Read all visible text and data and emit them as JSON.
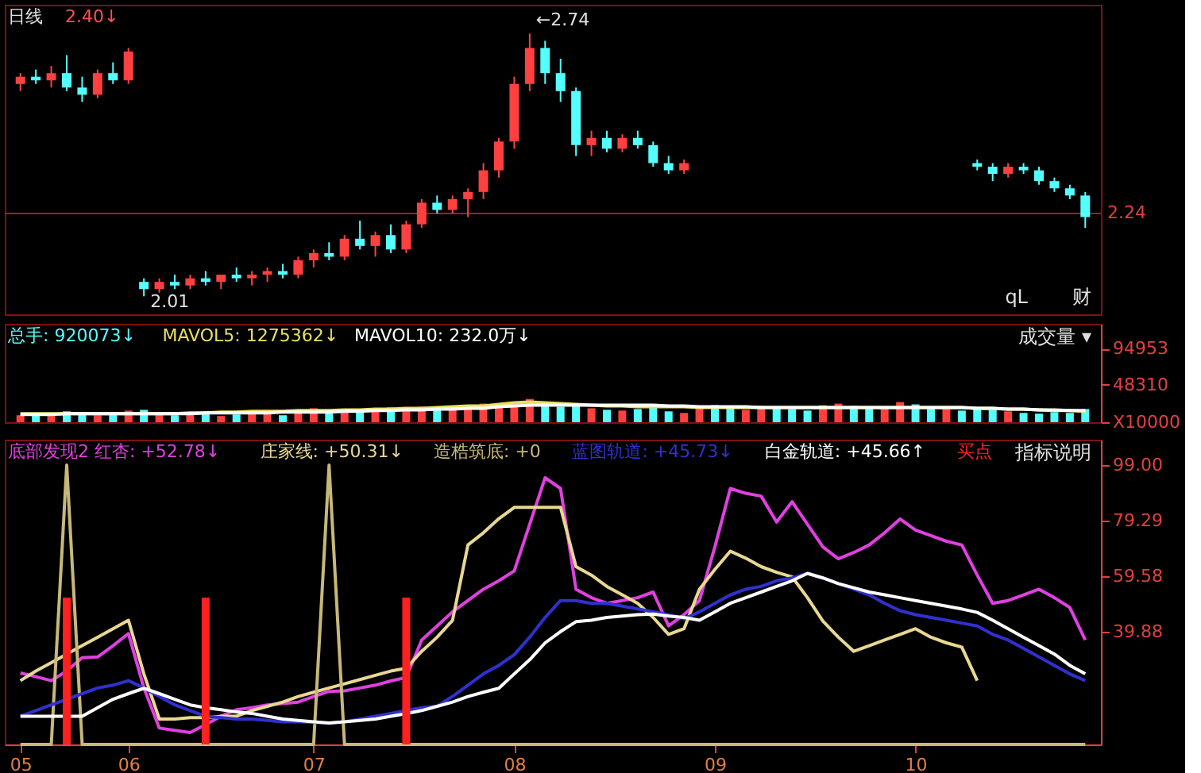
{
  "chart_data": [
    {
      "type": "candlestick",
      "title": "日线",
      "subtitle": "2.40↓",
      "ylim": [
        1.96,
        2.82
      ],
      "tick_labels": false,
      "ref_lines": [
        {
          "axis": "y",
          "value": 2.24,
          "label": "2.24",
          "color": "#a02020"
        }
      ],
      "categories": [
        null,
        null,
        null,
        null,
        null,
        null,
        null,
        null,
        null,
        null,
        null,
        null,
        null,
        null,
        null,
        null,
        null,
        null,
        null,
        null,
        null,
        null,
        null,
        null,
        null,
        null,
        null,
        null,
        null,
        null,
        null,
        null,
        null,
        null,
        null,
        null,
        null,
        null,
        null,
        null,
        null,
        null,
        null,
        null,
        null,
        null,
        null,
        null,
        null,
        null,
        null,
        null,
        null,
        null,
        null,
        null,
        null,
        null,
        null,
        null,
        null,
        null,
        null,
        null,
        null,
        null,
        null,
        null,
        null,
        null
      ],
      "ohlc": [
        [
          2.6,
          2.63,
          2.58,
          2.62
        ],
        [
          2.62,
          2.64,
          2.6,
          2.61
        ],
        [
          2.61,
          2.65,
          2.59,
          2.63
        ],
        [
          2.63,
          2.68,
          2.58,
          2.59
        ],
        [
          2.59,
          2.62,
          2.55,
          2.57
        ],
        [
          2.57,
          2.64,
          2.56,
          2.63
        ],
        [
          2.63,
          2.66,
          2.6,
          2.61
        ],
        [
          2.61,
          2.7,
          2.6,
          2.69
        ],
        [
          2.05,
          2.06,
          2.01,
          2.03
        ],
        [
          2.03,
          2.06,
          2.02,
          2.05
        ],
        [
          2.05,
          2.07,
          2.03,
          2.04
        ],
        [
          2.04,
          2.07,
          2.03,
          2.06
        ],
        [
          2.06,
          2.08,
          2.04,
          2.05
        ],
        [
          2.05,
          2.07,
          2.03,
          2.07
        ],
        [
          2.07,
          2.09,
          2.05,
          2.06
        ],
        [
          2.06,
          2.08,
          2.04,
          2.07
        ],
        [
          2.07,
          2.09,
          2.05,
          2.08
        ],
        [
          2.08,
          2.1,
          2.06,
          2.07
        ],
        [
          2.07,
          2.12,
          2.06,
          2.11
        ],
        [
          2.11,
          2.14,
          2.09,
          2.13
        ],
        [
          2.13,
          2.16,
          2.11,
          2.12
        ],
        [
          2.12,
          2.18,
          2.11,
          2.17
        ],
        [
          2.17,
          2.22,
          2.14,
          2.15
        ],
        [
          2.15,
          2.19,
          2.12,
          2.18
        ],
        [
          2.18,
          2.21,
          2.13,
          2.14
        ],
        [
          2.14,
          2.22,
          2.13,
          2.21
        ],
        [
          2.21,
          2.28,
          2.2,
          2.27
        ],
        [
          2.27,
          2.29,
          2.24,
          2.25
        ],
        [
          2.25,
          2.29,
          2.24,
          2.28
        ],
        [
          2.28,
          2.31,
          2.23,
          2.3
        ],
        [
          2.3,
          2.38,
          2.28,
          2.36
        ],
        [
          2.36,
          2.45,
          2.34,
          2.44
        ],
        [
          2.44,
          2.62,
          2.42,
          2.6
        ],
        [
          2.6,
          2.74,
          2.58,
          2.7
        ],
        [
          2.7,
          2.72,
          2.6,
          2.63
        ],
        [
          2.63,
          2.67,
          2.55,
          2.58
        ],
        [
          2.58,
          2.59,
          2.4,
          2.43
        ],
        [
          2.43,
          2.47,
          2.4,
          2.45
        ],
        [
          2.45,
          2.47,
          2.41,
          2.42
        ],
        [
          2.42,
          2.46,
          2.41,
          2.45
        ],
        [
          2.45,
          2.47,
          2.42,
          2.43
        ],
        [
          2.43,
          2.44,
          2.37,
          2.38
        ],
        [
          2.38,
          2.4,
          2.35,
          2.36
        ],
        [
          2.36,
          2.39,
          2.35,
          2.38
        ],
        null,
        null,
        null,
        null,
        null,
        null,
        null,
        null,
        null,
        null,
        null,
        null,
        null,
        null,
        null,
        null,
        null,
        null,
        [
          2.38,
          2.39,
          2.36,
          2.37
        ],
        [
          2.37,
          2.38,
          2.33,
          2.35
        ],
        [
          2.35,
          2.38,
          2.34,
          2.37
        ],
        [
          2.37,
          2.38,
          2.35,
          2.36
        ],
        [
          2.36,
          2.37,
          2.32,
          2.33
        ],
        [
          2.33,
          2.34,
          2.3,
          2.31
        ],
        [
          2.31,
          2.32,
          2.28,
          2.29
        ],
        [
          2.29,
          2.3,
          2.2,
          2.23
        ]
      ],
      "colors": [
        "#ff4040",
        "#54ffff",
        "#ff4040",
        "#54ffff",
        "#54ffff",
        "#ff4040",
        "#54ffff",
        "#ff4040",
        "#54ffff",
        "#ff4040",
        "#54ffff",
        "#ff4040",
        "#54ffff",
        "#ff4040",
        "#54ffff",
        "#ff4040",
        "#ff4040",
        "#54ffff",
        "#ff4040",
        "#ff4040",
        "#54ffff",
        "#ff4040",
        "#54ffff",
        "#ff4040",
        "#54ffff",
        "#ff4040",
        "#ff4040",
        "#54ffff",
        "#ff4040",
        "#ff4040",
        "#ff4040",
        "#ff4040",
        "#ff4040",
        "#ff4040",
        "#54ffff",
        "#54ffff",
        "#54ffff",
        "#ff4040",
        "#54ffff",
        "#ff4040",
        "#54ffff",
        "#54ffff",
        "#54ffff",
        "#ff4040",
        null,
        null,
        null,
        null,
        null,
        null,
        null,
        null,
        null,
        null,
        null,
        null,
        null,
        null,
        null,
        null,
        null,
        null,
        "#54ffff",
        "#54ffff",
        "#ff4040",
        "#54ffff",
        "#54ffff",
        "#54ffff",
        "#54ffff",
        "#54ffff"
      ],
      "annotations": [
        "←2.74",
        "2.01",
        "qL",
        "财"
      ]
    },
    {
      "type": "bar",
      "ylim": [
        0,
        127000
      ],
      "yticks": [
        94953,
        48310,
        {
          "value": 0,
          "label": "X10000"
        }
      ],
      "tick_labels": "y",
      "legend": "top left",
      "categories": [
        null,
        null,
        null,
        null,
        null,
        null,
        null,
        null,
        null,
        null,
        null,
        null,
        null,
        null,
        null,
        null,
        null,
        null,
        null,
        null,
        null,
        null,
        null,
        null,
        null,
        null,
        null,
        null,
        null,
        null,
        null,
        null,
        null,
        null,
        null,
        null,
        null,
        null,
        null,
        null,
        null,
        null,
        null,
        null,
        null,
        null,
        null,
        null,
        null,
        null,
        null,
        null,
        null,
        null,
        null,
        null,
        null,
        null,
        null,
        null,
        null,
        null,
        null,
        null,
        null,
        null,
        null,
        null,
        null,
        null
      ],
      "annotations": [
        "成交量 ▾"
      ],
      "series": [
        {
          "name": "总手: 920073↓",
          "type": "bar",
          "color": "#54ffff",
          "values": [
            9000,
            12000,
            10000,
            14000,
            11000,
            9000,
            13000,
            15000,
            16000,
            10000,
            9000,
            11000,
            12000,
            8000,
            10000,
            13000,
            14000,
            9000,
            15000,
            18000,
            12000,
            16000,
            14000,
            17000,
            19000,
            15000,
            20000,
            16000,
            18000,
            21000,
            24000,
            22000,
            25000,
            30000,
            26000,
            20000,
            23000,
            18000,
            16000,
            15000,
            17000,
            19000,
            14000,
            12000,
            20000,
            22000,
            18000,
            16000,
            21000,
            19000,
            17000,
            15000,
            22000,
            24000,
            21000,
            18000,
            20000,
            26000,
            23000,
            19000,
            17000,
            15000,
            18000,
            16000,
            14000,
            12000,
            11000,
            13000,
            12000,
            17000
          ],
          "colors": [
            "#ff4040",
            "#54ffff",
            "#ff4040",
            "#54ffff",
            "#54ffff",
            "#ff4040",
            "#54ffff",
            "#ff4040",
            "#54ffff",
            "#ff4040",
            "#54ffff",
            "#ff4040",
            "#54ffff",
            "#ff4040",
            "#54ffff",
            "#ff4040",
            "#ff4040",
            "#54ffff",
            "#ff4040",
            "#ff4040",
            "#54ffff",
            "#ff4040",
            "#54ffff",
            "#ff4040",
            "#54ffff",
            "#ff4040",
            "#ff4040",
            "#54ffff",
            "#ff4040",
            "#ff4040",
            "#ff4040",
            "#ff4040",
            "#ff4040",
            "#ff4040",
            "#54ffff",
            "#54ffff",
            "#54ffff",
            "#ff4040",
            "#54ffff",
            "#ff4040",
            "#54ffff",
            "#54ffff",
            "#54ffff",
            "#ff4040",
            "#ff4040",
            "#54ffff",
            "#54ffff",
            "#ff4040",
            "#ff4040",
            "#54ffff",
            "#54ffff",
            "#54ffff",
            "#ff4040",
            "#ff4040",
            "#54ffff",
            "#54ffff",
            "#ff4040",
            "#ff4040",
            "#54ffff",
            "#54ffff",
            "#ff4040",
            "#54ffff",
            "#54ffff",
            "#54ffff",
            "#ff4040",
            "#54ffff",
            "#54ffff",
            "#54ffff",
            "#54ffff",
            "#54ffff"
          ]
        },
        {
          "name": "MAVOL5: 1275362↓",
          "type": "line",
          "color": "#e8e060",
          "values": [
            11000,
            11000,
            11000,
            11000,
            11000,
            11000,
            11000,
            11000,
            11000,
            11000,
            11000,
            12000,
            12000,
            13000,
            13000,
            14000,
            14000,
            14000,
            15000,
            15000,
            15000,
            16000,
            16000,
            17000,
            17000,
            18000,
            18000,
            19000,
            20000,
            21000,
            21000,
            23000,
            25000,
            26000,
            25000,
            24000,
            23000,
            22000,
            21000,
            21000,
            20000,
            20000,
            20000,
            20000,
            19000,
            19000,
            19000,
            19000,
            19000,
            19000,
            19000,
            19000,
            19000,
            19000,
            19000,
            19000,
            19000,
            19000,
            19000,
            19000,
            19000,
            19000,
            18000,
            18000,
            17000,
            17000,
            16000,
            15000,
            15000,
            14000
          ]
        },
        {
          "name": "MAVOL10: 232.0万↓",
          "type": "line",
          "color": "#ffffff",
          "values": [
            10000,
            10000,
            10000,
            11000,
            11000,
            11000,
            11000,
            11000,
            11000,
            11000,
            11000,
            11000,
            12000,
            12000,
            12000,
            12000,
            12000,
            13000,
            13000,
            13000,
            13000,
            14000,
            14000,
            15000,
            15000,
            16000,
            16000,
            17000,
            17000,
            18000,
            18000,
            20000,
            21000,
            22000,
            22000,
            22000,
            22000,
            22000,
            22000,
            22000,
            22000,
            22000,
            21000,
            21000,
            20000,
            20000,
            20000,
            20000,
            19000,
            19000,
            19000,
            19000,
            19000,
            19000,
            19000,
            19000,
            19000,
            19000,
            19000,
            19000,
            19000,
            19000,
            18000,
            18000,
            17000,
            17000,
            16000,
            16000,
            15000,
            15000
          ]
        }
      ]
    },
    {
      "type": "line",
      "ylim": [
        0,
        108
      ],
      "yticks": [
        {
          "value": 99,
          "label": "99.00"
        },
        {
          "value": 79.29,
          "label": "79.29"
        },
        {
          "value": 59.58,
          "label": "59.58"
        },
        {
          "value": 39.88,
          "label": "39.88"
        }
      ],
      "categories": [
        "05",
        null,
        null,
        null,
        null,
        null,
        null,
        "06",
        null,
        null,
        null,
        null,
        null,
        null,
        null,
        null,
        null,
        null,
        null,
        "07",
        null,
        null,
        null,
        null,
        null,
        null,
        null,
        null,
        null,
        null,
        null,
        null,
        "08",
        null,
        null,
        null,
        null,
        null,
        null,
        null,
        null,
        null,
        null,
        null,
        null,
        "09",
        null,
        null,
        null,
        null,
        null,
        null,
        null,
        null,
        null,
        null,
        null,
        null,
        "10",
        null,
        null,
        null,
        null,
        null,
        null,
        null,
        null,
        null,
        null,
        null
      ],
      "legend": "top left",
      "annotations": [
        "指标说明"
      ],
      "series": [
        {
          "name": "底部发现2 红杏: +52.78↓",
          "type": "line",
          "color": "#e040e0",
          "values": [
            25.3,
            24,
            22.6,
            26,
            30.7,
            31,
            35,
            39.3,
            20,
            5.8,
            5,
            4.2,
            7,
            10,
            12.3,
            13,
            14,
            14.5,
            15,
            17,
            18.8,
            19,
            20,
            21,
            22.5,
            23.7,
            37,
            42,
            47,
            51,
            55,
            58,
            61.5,
            78,
            94.5,
            90.7,
            55,
            52,
            50,
            51,
            52,
            54,
            42,
            46,
            51,
            70,
            90.7,
            89,
            88,
            78.8,
            86,
            78,
            70,
            65.8,
            68,
            70.7,
            75,
            79.9,
            76,
            74,
            72,
            70.7,
            60,
            50,
            51,
            53,
            55,
            52,
            48.5,
            37
          ]
        },
        {
          "name": "庄家线: +50.31↓",
          "type": "line",
          "color": "#e8d890",
          "values": [
            22.6,
            26,
            29,
            32,
            35,
            38,
            41,
            44,
            25,
            9,
            9,
            9.5,
            9.5,
            10,
            10,
            12,
            13.5,
            15,
            17,
            18.5,
            20,
            21.5,
            23,
            24.5,
            26,
            27,
            33,
            38,
            44,
            70.7,
            75,
            80,
            84,
            84,
            84,
            84,
            63,
            60,
            56,
            53,
            50,
            45,
            39,
            41,
            55,
            62,
            68.5,
            66,
            63,
            61,
            59.4,
            52,
            43.7,
            38,
            33,
            35,
            37,
            39,
            41,
            38,
            36,
            34.5,
            22.6,
            null,
            null,
            null,
            null,
            null,
            null,
            null
          ]
        },
        {
          "name": "造梏筑底: +0",
          "type": "line",
          "color": "#c8b878",
          "values": [
            0,
            0,
            0,
            99,
            0,
            0,
            0,
            0,
            0,
            0,
            0,
            0,
            0,
            0,
            0,
            0,
            0,
            0,
            0,
            0,
            99,
            0,
            0,
            0,
            0,
            0,
            0,
            0,
            0,
            0,
            0,
            0,
            0,
            0,
            0,
            0,
            0,
            0,
            0,
            0,
            0,
            0,
            0,
            0,
            0,
            0,
            0,
            0,
            0,
            0,
            0,
            0,
            0,
            0,
            0,
            0,
            0,
            0,
            0,
            0,
            0,
            0,
            0,
            0,
            0,
            0,
            0,
            0,
            0,
            0
          ]
        },
        {
          "name": "蓝图轨道: +45.73↓",
          "type": "line",
          "color": "#3030d0",
          "values": [
            10,
            12,
            14,
            16,
            18,
            20,
            21,
            22.6,
            20,
            17,
            14,
            12,
            10,
            9.5,
            9,
            9,
            8.5,
            8,
            8,
            7.8,
            7.6,
            8,
            9,
            10,
            11,
            12,
            13,
            13.6,
            17,
            21,
            25,
            28,
            31.8,
            38,
            45,
            51,
            51,
            50,
            50,
            49,
            48,
            47,
            46,
            44.5,
            47,
            50,
            53,
            55,
            56,
            58,
            59,
            60.6,
            59,
            57,
            55,
            53,
            50,
            47.4,
            46,
            45,
            44,
            43,
            42,
            39,
            37,
            34,
            31,
            28,
            25,
            22.6
          ]
        },
        {
          "name": "白金轨道: +45.66↑",
          "type": "line",
          "color": "#ffffff",
          "values": [
            10,
            10,
            10,
            10,
            10,
            13,
            16,
            18,
            19.9,
            18,
            16,
            14,
            13,
            12.3,
            11.5,
            11,
            10,
            9,
            8.5,
            8,
            7.6,
            8,
            8.5,
            9,
            10,
            10.9,
            12,
            13.5,
            15,
            17,
            18.5,
            19.9,
            25,
            30,
            36,
            40,
            43.5,
            44,
            45,
            45.5,
            46,
            46.2,
            45.5,
            45,
            44,
            47,
            50,
            52,
            54,
            56,
            58,
            60.6,
            59,
            57,
            55.5,
            54,
            53,
            52,
            51,
            50,
            49,
            48,
            46.8,
            44,
            41,
            38,
            35,
            32,
            28,
            25
          ]
        },
        {
          "name": "买点",
          "type": "bar",
          "color": "#ff2020",
          "values": [
            null,
            null,
            null,
            52,
            null,
            null,
            null,
            null,
            null,
            null,
            null,
            null,
            52,
            null,
            null,
            null,
            null,
            null,
            null,
            null,
            null,
            null,
            null,
            null,
            null,
            52,
            null,
            null,
            null,
            null,
            null,
            null,
            null,
            null,
            null,
            null,
            null,
            null,
            null,
            null,
            null,
            null,
            null,
            null,
            null,
            null,
            null,
            null,
            null,
            null,
            null,
            null,
            null,
            null,
            null,
            null,
            null,
            null,
            null,
            null,
            null,
            null,
            null,
            null,
            null,
            null,
            null,
            null,
            null,
            null
          ]
        }
      ]
    }
  ]
}
